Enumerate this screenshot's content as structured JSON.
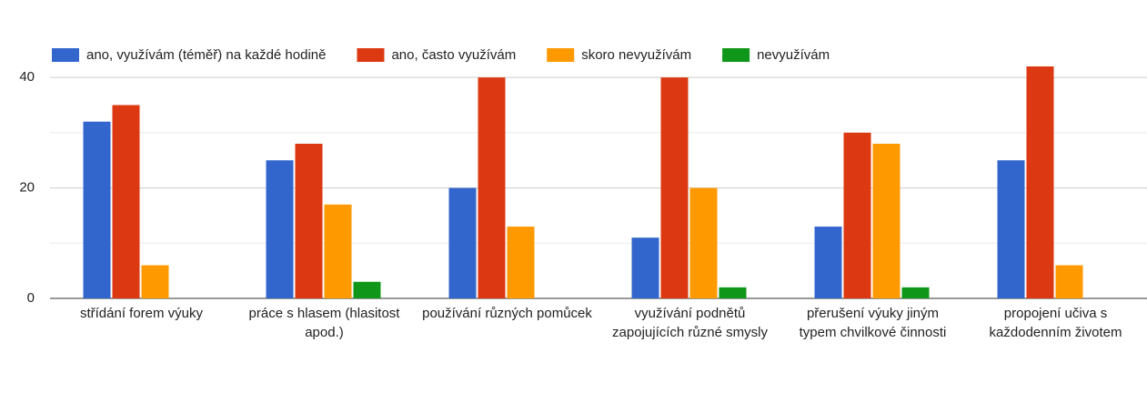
{
  "chart_data": {
    "type": "bar",
    "categories": [
      "střídání forem výuky",
      "práce s hlasem (hlasitost apod.)",
      "používání různých pomůcek",
      "využívání podnětů zapojujících různé smysly",
      "přerušení výuky jiným typem chvilkové činnosti",
      "propojení učiva s každodenním životem"
    ],
    "series": [
      {
        "name": "ano, využívám (téměř) na každé hodině",
        "color": "#3366cc",
        "values": [
          32,
          25,
          20,
          11,
          13,
          25
        ]
      },
      {
        "name": "ano, často využívám",
        "color": "#dc3912",
        "values": [
          35,
          28,
          40,
          40,
          30,
          42
        ]
      },
      {
        "name": "skoro nevyužívám",
        "color": "#ff9900",
        "values": [
          6,
          17,
          13,
          20,
          28,
          6
        ]
      },
      {
        "name": "nevyužívám",
        "color": "#109618",
        "values": [
          0,
          3,
          0,
          2,
          2,
          0
        ]
      }
    ],
    "ylim": [
      0,
      42
    ],
    "yticks": [
      0,
      20,
      40
    ],
    "grid": true,
    "minor_grid": true,
    "legend": "top"
  }
}
